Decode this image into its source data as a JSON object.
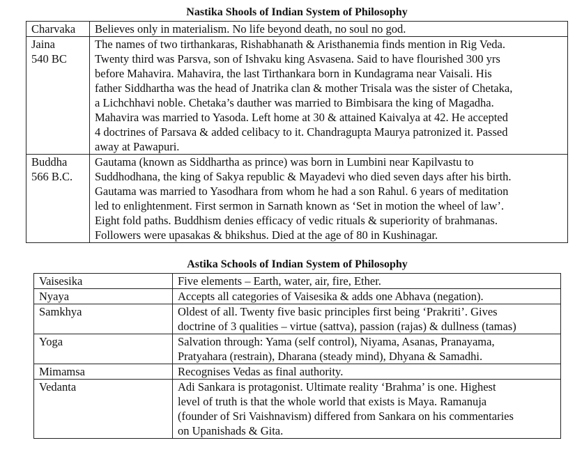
{
  "nastika": {
    "title": "Nastika Shools of Indian System of Philosophy",
    "rows": [
      {
        "name": [
          "Charvaka"
        ],
        "text": [
          "Believes only in materialism. No life beyond death, no soul no god."
        ]
      },
      {
        "name": [
          "Jaina",
          "540 BC"
        ],
        "text": [
          "The names of two tirthankaras, Rishabhanath & Aristhanemia finds mention in Rig Veda.",
          "Twenty third was Parsva, son of Ishvaku king Asvasena. Said to have flourished 300 yrs",
          "before Mahavira. Mahavira, the last Tirthankara  born in Kundagrama near Vaisali. His",
          "father Siddhartha was the head of Jnatrika clan & mother Trisala was the sister of Chetaka,",
          "a Lichchhavi noble. Chetaka’s dauther was married to Bimbisara the king of Magadha.",
          "Mahavira was married to Yasoda. Left home at 30 & attained Kaivalya at 42.  He accepted",
          "4 doctrines of Parsava & added celibacy to it.  Chandragupta Maurya patronized it. Passed",
          "away at Pawapuri."
        ]
      },
      {
        "name": [
          "Buddha",
          "566 B.C."
        ],
        "text": [
          "Gautama (known as Siddhartha as prince) was born in Lumbini near Kapilvastu to",
          "Suddhodhana, the king of Sakya republic & Mayadevi who died seven days after his birth.",
          "Gautama was married to Yasodhara from whom he had a son Rahul. 6 years of meditation",
          "led to enlightenment. First sermon in Sarnath known as ‘Set in motion the wheel of law’.",
          "Eight fold paths. Buddhism denies efficacy of vedic rituals & superiority of brahmanas.",
          "Followers were upasakas & bhikshus. Died at the age of 80 in Kushinagar."
        ]
      }
    ]
  },
  "astika": {
    "title": "Astika Schools of Indian System of Philosophy",
    "rows": [
      {
        "name": [
          "Vaisesika"
        ],
        "text": [
          "Five elements – Earth, water, air, fire, Ether."
        ]
      },
      {
        "name": [
          "Nyaya"
        ],
        "text": [
          "Accepts all categories of Vaisesika & adds one Abhava (negation)."
        ]
      },
      {
        "name": [
          "Samkhya"
        ],
        "text": [
          "Oldest of all. Twenty five basic principles first being ‘Prakriti’. Gives",
          "doctrine of 3 qualities – virtue (sattva), passion (rajas) & dullness (tamas)"
        ]
      },
      {
        "name": [
          "Yoga"
        ],
        "text": [
          "Salvation through: Yama (self control), Niyama, Asanas, Pranayama,",
          "Pratyahara (restrain), Dharana (steady mind), Dhyana & Samadhi."
        ]
      },
      {
        "name": [
          "Mimamsa"
        ],
        "text": [
          "Recognises Vedas as final authority."
        ]
      },
      {
        "name": [
          "Vedanta"
        ],
        "text": [
          "Adi Sankara is protagonist. Ultimate reality ‘Brahma’ is one. Highest",
          "level of truth is that the whole world that exists is Maya. Ramanuja",
          "(founder of Sri Vaishnavism) differed from Sankara on his commentaries",
          "on Upanishads & Gita."
        ]
      }
    ]
  }
}
